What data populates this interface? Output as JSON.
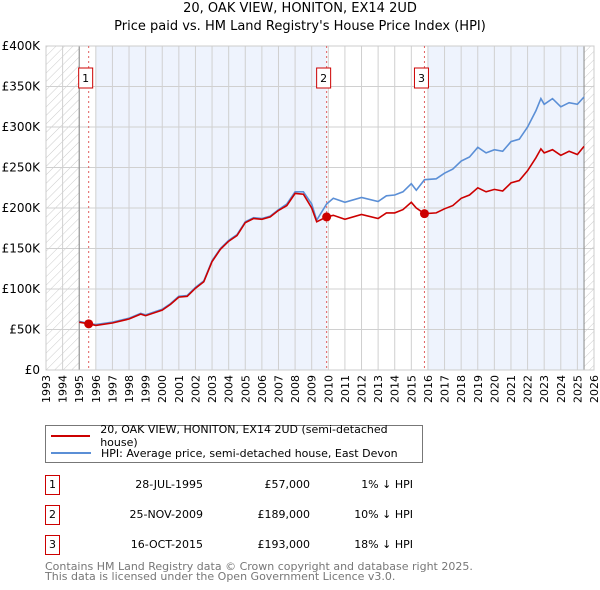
{
  "chart_data": {
    "type": "line",
    "title": "20, OAK VIEW, HONITON, EX14 2UD",
    "subtitle": "Price paid vs. HM Land Registry's House Price Index (HPI)",
    "xlim": [
      1993,
      2026
    ],
    "ylim": [
      0,
      400000
    ],
    "y_ticks": [
      0,
      50000,
      100000,
      150000,
      200000,
      250000,
      300000,
      350000,
      400000
    ],
    "y_tick_labels": [
      "£0",
      "£50K",
      "£100K",
      "£150K",
      "£200K",
      "£250K",
      "£300K",
      "£350K",
      "£400K"
    ],
    "x_ticks": [
      1993,
      1994,
      1995,
      1996,
      1997,
      1998,
      1999,
      2000,
      2001,
      2002,
      2003,
      2004,
      2005,
      2006,
      2007,
      2008,
      2009,
      2010,
      2011,
      2012,
      2013,
      2014,
      2015,
      2016,
      2017,
      2018,
      2019,
      2020,
      2021,
      2022,
      2023,
      2024,
      2025,
      2026
    ],
    "x_tick_labels": [
      "1993",
      "1994",
      "1995",
      "1996",
      "1997",
      "1998",
      "1999",
      "2000",
      "2001",
      "2002",
      "2003",
      "2004",
      "2005",
      "2006",
      "2007",
      "2008",
      "2009",
      "2010",
      "2011",
      "2012",
      "2013",
      "2014",
      "2015",
      "2016",
      "2017",
      "2018",
      "2019",
      "2020",
      "2021",
      "2022",
      "2023",
      "2024",
      "2025",
      "2026"
    ],
    "grid": true,
    "data_range": [
      1995.0,
      2025.4
    ],
    "shaded_spans": [
      [
        1996.0,
        2009.9
      ],
      [
        2016.0,
        2025.4
      ]
    ],
    "series": [
      {
        "name": "20, OAK VIEW, HONITON, EX14 2UD (semi-detached house)",
        "color": "#cc0000",
        "x": [
          1995.0,
          1995.57,
          1996,
          1997,
          1998,
          1998.7,
          1999,
          2000,
          2000.5,
          2001,
          2001.5,
          2002,
          2002.5,
          2003,
          2003.5,
          2004,
          2004.5,
          2005,
          2005.5,
          2006,
          2006.5,
          2007,
          2007.5,
          2008,
          2008.5,
          2009,
          2009.3,
          2009.9,
          2010.3,
          2011,
          2012,
          2013,
          2013.5,
          2014,
          2014.5,
          2015,
          2015.3,
          2015.79,
          2016.5,
          2017,
          2017.5,
          2018,
          2018.5,
          2019,
          2019.5,
          2020,
          2020.5,
          2021,
          2021.5,
          2022,
          2022.5,
          2022.8,
          2023,
          2023.5,
          2024,
          2024.5,
          2025,
          2025.4
        ],
        "y": [
          59000,
          57000,
          55000,
          58000,
          63000,
          69000,
          67000,
          74000,
          81000,
          90000,
          91000,
          101000,
          109000,
          134000,
          149000,
          159000,
          166000,
          182000,
          187000,
          186000,
          189000,
          197000,
          203000,
          218000,
          217000,
          200000,
          183000,
          189000,
          191000,
          186000,
          192000,
          187000,
          194000,
          194000,
          198000,
          207000,
          200000,
          193000,
          194000,
          199000,
          203000,
          212000,
          216000,
          225000,
          220000,
          223000,
          221000,
          231000,
          234000,
          246000,
          262000,
          273000,
          268000,
          272000,
          265000,
          270000,
          266000,
          276000
        ]
      },
      {
        "name": "HPI: Average price, semi-detached house, East Devon",
        "color": "#5b8fd6",
        "x": [
          1995.0,
          1995.57,
          1996,
          1997,
          1998,
          1998.7,
          1999,
          2000,
          2000.5,
          2001,
          2001.5,
          2002,
          2002.5,
          2003,
          2003.5,
          2004,
          2004.5,
          2005,
          2005.5,
          2006,
          2006.5,
          2007,
          2007.5,
          2008,
          2008.5,
          2009,
          2009.3,
          2009.9,
          2010.3,
          2011,
          2012,
          2013,
          2013.5,
          2014,
          2014.5,
          2015,
          2015.3,
          2015.79,
          2016.5,
          2017,
          2017.5,
          2018,
          2018.5,
          2019,
          2019.5,
          2020,
          2020.5,
          2021,
          2021.5,
          2022,
          2022.5,
          2022.8,
          2023,
          2023.5,
          2024,
          2024.5,
          2025,
          2025.4
        ],
        "y": [
          60000,
          57500,
          56000,
          59000,
          64000,
          70000,
          68000,
          75000,
          82000,
          91000,
          92000,
          102000,
          110000,
          135000,
          150000,
          160000,
          167000,
          183000,
          188000,
          187000,
          190000,
          198000,
          205000,
          220000,
          220000,
          205000,
          185000,
          205000,
          212000,
          207000,
          213000,
          208000,
          215000,
          216000,
          220000,
          230000,
          222000,
          235000,
          236000,
          243000,
          248000,
          258000,
          263000,
          275000,
          268000,
          272000,
          270000,
          282000,
          285000,
          300000,
          320000,
          335000,
          328000,
          335000,
          325000,
          330000,
          328000,
          337000
        ]
      }
    ],
    "sales": [
      {
        "label": "1",
        "x": 1995.57,
        "y": 57000
      },
      {
        "label": "2",
        "x": 2009.9,
        "y": 189000
      },
      {
        "label": "3",
        "x": 2015.79,
        "y": 193000
      }
    ],
    "legend_placement": "below"
  },
  "legend": {
    "items": [
      {
        "label": "20, OAK VIEW, HONITON, EX14 2UD (semi-detached house)",
        "color": "#cc0000"
      },
      {
        "label": "HPI: Average price, semi-detached house, East Devon",
        "color": "#5b8fd6"
      }
    ]
  },
  "table": [
    {
      "num": "1",
      "date": "28-JUL-1995",
      "price": "£57,000",
      "hpi": "1% ↓ HPI"
    },
    {
      "num": "2",
      "date": "25-NOV-2009",
      "price": "£189,000",
      "hpi": "10% ↓ HPI"
    },
    {
      "num": "3",
      "date": "16-OCT-2015",
      "price": "£193,000",
      "hpi": "18% ↓ HPI"
    }
  ],
  "footer": [
    "Contains HM Land Registry data © Crown copyright and database right 2025.",
    "This data is licensed under the Open Government Licence v3.0."
  ]
}
